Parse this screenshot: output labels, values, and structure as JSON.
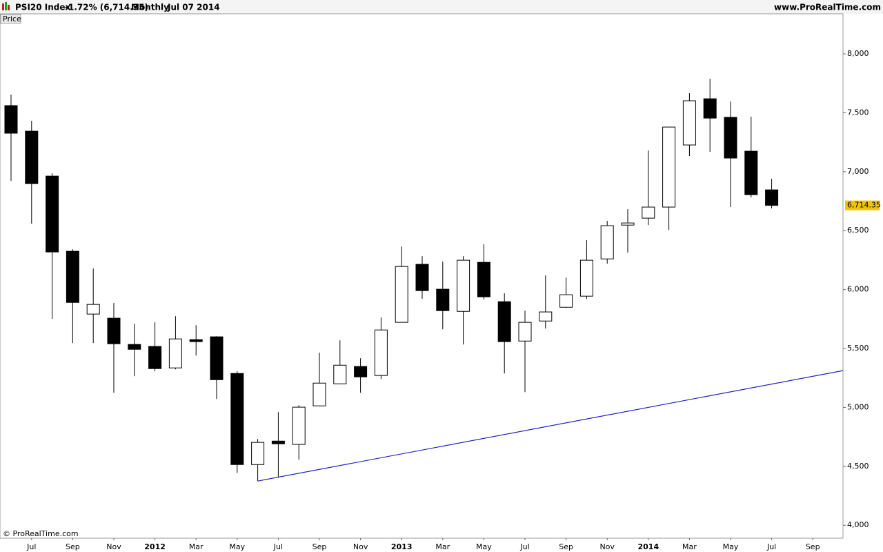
{
  "header": {
    "symbol": "PSI20 Index",
    "change": "-1.72% (6,714.35)",
    "period": "Monthly",
    "date": "Jul 07 2014",
    "site": "www.ProRealTime.com"
  },
  "panel_label": "Price",
  "copyright": "© ProRealTime.com",
  "chart_data": {
    "type": "candlestick",
    "categories": [
      null,
      "Jul",
      null,
      "Sep",
      null,
      "Nov",
      null,
      "2012",
      null,
      "Mar",
      null,
      "May",
      null,
      "Jul",
      null,
      "Sep",
      null,
      "Nov",
      null,
      "2013",
      null,
      "Mar",
      null,
      "May",
      null,
      "Jul",
      null,
      "Sep",
      null,
      "Nov",
      null,
      "2014",
      null,
      "Mar",
      null,
      "May",
      null,
      "Jul",
      null,
      "Sep"
    ],
    "open": [
      7561,
      7344,
      6963,
      6325,
      5792,
      5757,
      5534,
      5517,
      5335,
      5575,
      5599,
      5288,
      4515,
      4714,
      4686,
      5013,
      5200,
      5347,
      5271,
      5722,
      6214,
      6003,
      5815,
      6231,
      5897,
      5563,
      5733,
      5850,
      5944,
      6260,
      6547,
      6606,
      6700,
      7227,
      7619,
      7461,
      7174,
      6846,
      null,
      null
    ],
    "high": [
      7654,
      7432,
      6987,
      6342,
      6179,
      5886,
      5710,
      5722,
      5774,
      5698,
      5604,
      5306,
      4732,
      4960,
      5019,
      5464,
      5569,
      5417,
      5763,
      6366,
      6284,
      6237,
      6284,
      6384,
      5968,
      5821,
      6120,
      6102,
      6419,
      6583,
      6682,
      7180,
      7379,
      7666,
      7789,
      7596,
      7467,
      6940,
      null,
      null
    ],
    "low": [
      6922,
      6559,
      5751,
      5546,
      5546,
      5124,
      5265,
      5306,
      5323,
      5440,
      5071,
      4445,
      4375,
      4410,
      4557,
      5013,
      5200,
      5124,
      5241,
      5722,
      5921,
      5663,
      5534,
      5915,
      5288,
      5130,
      5669,
      5845,
      5921,
      6219,
      6313,
      6547,
      6506,
      7133,
      7168,
      6700,
      6782,
      6688,
      null,
      null
    ],
    "close": [
      7327,
      6899,
      6319,
      5891,
      5874,
      5540,
      5493,
      5329,
      5581,
      5558,
      5235,
      4515,
      4703,
      4691,
      5002,
      5206,
      5358,
      5259,
      5657,
      6196,
      5991,
      5821,
      6249,
      5938,
      5558,
      5722,
      5810,
      5956,
      6249,
      6542,
      6565,
      6700,
      7379,
      7602,
      7455,
      7116,
      6805,
      6714.35,
      null,
      null
    ],
    "up_color": "#ffffff",
    "down_color": "#000000",
    "last_price": {
      "value": 6714.35,
      "label": "6,714.35"
    },
    "trendline": {
      "values": [
        4375,
        5312
      ],
      "color": "#2020c0"
    },
    "ylim": [
      3890,
      8340
    ],
    "yticks": [
      {
        "value": 4000,
        "label": "4,000"
      },
      {
        "value": 4500,
        "label": "4,500"
      },
      {
        "value": 5000,
        "label": "5,000"
      },
      {
        "value": 5500,
        "label": "5,500"
      },
      {
        "value": 6000,
        "label": "6,000"
      },
      {
        "value": 6500,
        "label": "6,500"
      },
      {
        "value": 7000,
        "label": "7,000"
      },
      {
        "value": 7500,
        "label": "7,500"
      },
      {
        "value": 8000,
        "label": "8,000"
      }
    ]
  }
}
